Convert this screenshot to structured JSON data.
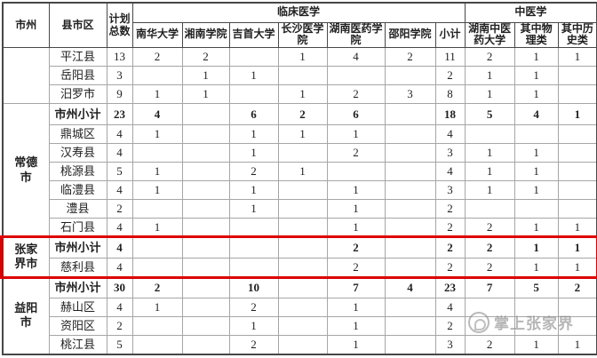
{
  "table": {
    "header": {
      "col_city": "市州",
      "col_county": "县市区",
      "col_total": "计划总数",
      "group_clinical": "临床医学",
      "group_tcm": "中医学",
      "clinical_columns": [
        "南华大学",
        "湘南学院",
        "吉首大学",
        "长沙医学院",
        "湖南医药学院",
        "邵阳学院",
        "小计"
      ],
      "tcm_columns": [
        "湖南中医药大学",
        "其中物理类",
        "其中历史类"
      ]
    },
    "groups": [
      {
        "city": "",
        "highlight": false,
        "rows": [
          {
            "county": "平江县",
            "subtotal": false,
            "values": [
              "13",
              "2",
              "2",
              "",
              "1",
              "4",
              "2",
              "11",
              "2",
              "1",
              "1"
            ]
          },
          {
            "county": "岳阳县",
            "subtotal": false,
            "values": [
              "3",
              "",
              "1",
              "1",
              "",
              "",
              "",
              "2",
              "1",
              "1",
              ""
            ]
          },
          {
            "county": "汨罗市",
            "subtotal": false,
            "values": [
              "9",
              "1",
              "1",
              "",
              "1",
              "2",
              "3",
              "8",
              "1",
              "1",
              ""
            ]
          }
        ]
      },
      {
        "city": "常德市",
        "highlight": false,
        "rows": [
          {
            "county": "市州小计",
            "subtotal": true,
            "values": [
              "23",
              "4",
              "",
              "6",
              "2",
              "6",
              "",
              "18",
              "5",
              "4",
              "1"
            ]
          },
          {
            "county": "鼎城区",
            "subtotal": false,
            "values": [
              "4",
              "1",
              "",
              "1",
              "1",
              "1",
              "",
              "4",
              "",
              "",
              ""
            ]
          },
          {
            "county": "汉寿县",
            "subtotal": false,
            "values": [
              "4",
              "",
              "",
              "1",
              "",
              "2",
              "",
              "3",
              "1",
              "1",
              ""
            ]
          },
          {
            "county": "桃源县",
            "subtotal": false,
            "values": [
              "5",
              "1",
              "",
              "2",
              "1",
              "",
              "",
              "4",
              "1",
              "1",
              ""
            ]
          },
          {
            "county": "临澧县",
            "subtotal": false,
            "values": [
              "4",
              "1",
              "",
              "1",
              "",
              "1",
              "",
              "3",
              "1",
              "1",
              ""
            ]
          },
          {
            "county": "澧县",
            "subtotal": false,
            "values": [
              "2",
              "",
              "",
              "1",
              "",
              "1",
              "",
              "2",
              "",
              "",
              ""
            ]
          },
          {
            "county": "石门县",
            "subtotal": false,
            "values": [
              "4",
              "1",
              "",
              "",
              "",
              "1",
              "",
              "2",
              "2",
              "1",
              "1"
            ]
          }
        ]
      },
      {
        "city": "张家界市",
        "highlight": true,
        "rows": [
          {
            "county": "市州小计",
            "subtotal": true,
            "values": [
              "4",
              "",
              "",
              "",
              "",
              "2",
              "",
              "2",
              "2",
              "1",
              "1"
            ]
          },
          {
            "county": "慈利县",
            "subtotal": false,
            "values": [
              "4",
              "",
              "",
              "",
              "",
              "2",
              "",
              "2",
              "2",
              "1",
              "1"
            ]
          }
        ]
      },
      {
        "city": "益阳市",
        "highlight": false,
        "rows": [
          {
            "county": "市州小计",
            "subtotal": true,
            "values": [
              "30",
              "2",
              "",
              "10",
              "",
              "7",
              "4",
              "23",
              "7",
              "5",
              "2"
            ]
          },
          {
            "county": "赫山区",
            "subtotal": false,
            "values": [
              "4",
              "1",
              "",
              "2",
              "",
              "1",
              "",
              "4",
              "",
              "",
              ""
            ]
          },
          {
            "county": "资阳区",
            "subtotal": false,
            "values": [
              "2",
              "",
              "",
              "1",
              "",
              "1",
              "",
              "2",
              "",
              "",
              ""
            ]
          },
          {
            "county": "桃江县",
            "subtotal": false,
            "values": [
              "5",
              "",
              "",
              "2",
              "",
              "1",
              "",
              "3",
              "2",
              "1",
              "1"
            ]
          }
        ]
      }
    ]
  },
  "watermark": {
    "text": "掌上张家界"
  },
  "colors": {
    "highlight_red": "#dd0000",
    "grid": "#a6a6a6",
    "grid_dark": "#474747",
    "text": "#1f1f1f",
    "watermark_gray": "#8a8a8a"
  }
}
